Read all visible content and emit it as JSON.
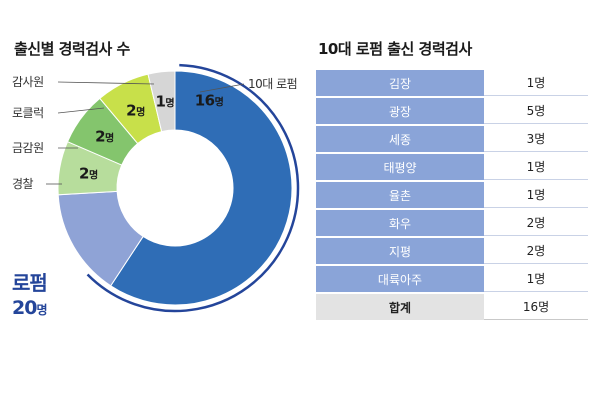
{
  "chart_data": [
    {
      "type": "pie",
      "title": "출신별 경력검사 수",
      "categories": [
        "10대 로펌",
        "로펌",
        "경찰",
        "금감원",
        "로클럭",
        "감사원"
      ],
      "values": [
        16,
        4,
        2,
        2,
        2,
        1
      ],
      "value_labels": [
        "16명",
        "",
        "2명",
        "2명",
        "2명",
        "1명"
      ],
      "colors": [
        "#2f6db6",
        "#8fa3d6",
        "#b7dd9c",
        "#84c56d",
        "#c8e04a",
        "#d6d6d6"
      ],
      "group_label": {
        "name": "로펌",
        "value": "20명"
      },
      "note": "donut; 10대 로펌 arc is part of 로펌 total"
    },
    {
      "type": "table",
      "title": "10대 로펌 출신 경력검사",
      "rows": [
        {
          "name": "김장",
          "value": "1명"
        },
        {
          "name": "광장",
          "value": "5명"
        },
        {
          "name": "세종",
          "value": "3명"
        },
        {
          "name": "태평양",
          "value": "1명"
        },
        {
          "name": "율촌",
          "value": "1명"
        },
        {
          "name": "화우",
          "value": "2명"
        },
        {
          "name": "지평",
          "value": "2명"
        },
        {
          "name": "대륙아주",
          "value": "1명"
        }
      ],
      "total": {
        "name": "합계",
        "value": "16명"
      }
    }
  ]
}
